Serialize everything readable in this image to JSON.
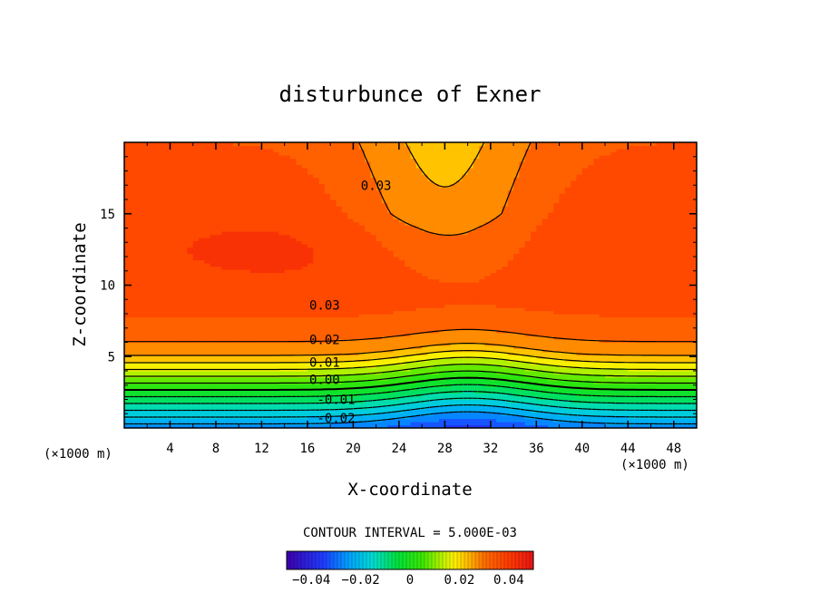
{
  "chart_data": {
    "type": "contour",
    "title": "disturbunce of Exner",
    "xlabel": "X-coordinate",
    "ylabel": "Z-coordinate",
    "x_unit_label": "(×1000 m)",
    "y_unit_label": "(×1000 m)",
    "xlim": [
      0,
      50
    ],
    "ylim": [
      0,
      20
    ],
    "x_ticks": [
      4,
      8,
      12,
      16,
      20,
      24,
      28,
      32,
      36,
      40,
      44,
      48
    ],
    "x_tick_labels": [
      "4",
      "8",
      "12",
      "16",
      "20",
      "24",
      "28",
      "32",
      "36",
      "40",
      "44",
      "48"
    ],
    "y_ticks": [
      5,
      10,
      15
    ],
    "y_tick_labels": [
      "5",
      "10",
      "15"
    ],
    "contour_interval_text": "CONTOUR INTERVAL = 5.000E-03",
    "contour_labels": [
      {
        "text": "0.03",
        "x": 22,
        "z": 17
      },
      {
        "text": "0.03",
        "x": 17.5,
        "z": 8.6
      },
      {
        "text": "0.02",
        "x": 17.5,
        "z": 6.2
      },
      {
        "text": "0.01",
        "x": 17.5,
        "z": 4.6
      },
      {
        "text": "0.00",
        "x": 17.5,
        "z": 3.4
      },
      {
        "text": "-0.01",
        "x": 18.5,
        "z": 2.0
      },
      {
        "text": "-0.02",
        "x": 18.5,
        "z": 0.7
      }
    ],
    "colorbar": {
      "range": [
        -0.05,
        0.05
      ],
      "ticks": [
        -0.04,
        -0.02,
        0,
        0.02,
        0.04
      ],
      "tick_labels": [
        "−0.04",
        "−0.02",
        "0",
        "0.02",
        "0.04"
      ]
    },
    "colors": {
      "low": "#1e78ff",
      "mid": "#00e000",
      "high": "#ff3500"
    }
  }
}
